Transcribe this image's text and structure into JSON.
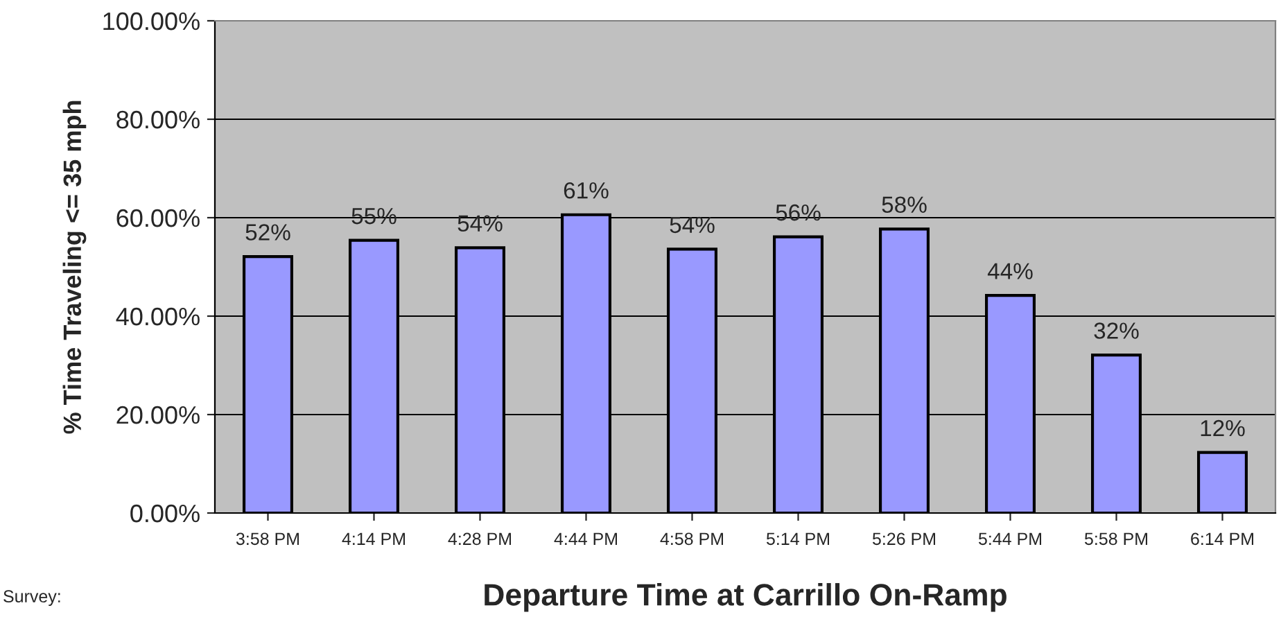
{
  "chart_data": {
    "type": "bar",
    "categories": [
      "3:58 PM",
      "4:14 PM",
      "4:28 PM",
      "4:44 PM",
      "4:58 PM",
      "5:14 PM",
      "5:26 PM",
      "5:44 PM",
      "5:58 PM",
      "6:14 PM"
    ],
    "values": [
      52.1,
      55.4,
      53.9,
      60.6,
      53.6,
      56.1,
      57.7,
      44.2,
      32.1,
      12.3
    ],
    "value_labels": [
      "52%",
      "55%",
      "54%",
      "61%",
      "54%",
      "56%",
      "58%",
      "44%",
      "32%",
      "12%"
    ],
    "color": "#9999ff",
    "xlabel": "Departure Time at Carrillo On-Ramp",
    "ylabel": "% Time Traveling <= 35 mph",
    "ylim": [
      0,
      100
    ],
    "yticks": [
      {
        "value": 0,
        "label": "0.00%"
      },
      {
        "value": 20,
        "label": "20.00%"
      },
      {
        "value": 40,
        "label": "40.00%"
      },
      {
        "value": 60,
        "label": "60.00%"
      },
      {
        "value": 80,
        "label": "80.00%"
      },
      {
        "value": 100,
        "label": "100.00%"
      }
    ],
    "grid": "y",
    "annotations": [
      "Survey:"
    ]
  }
}
